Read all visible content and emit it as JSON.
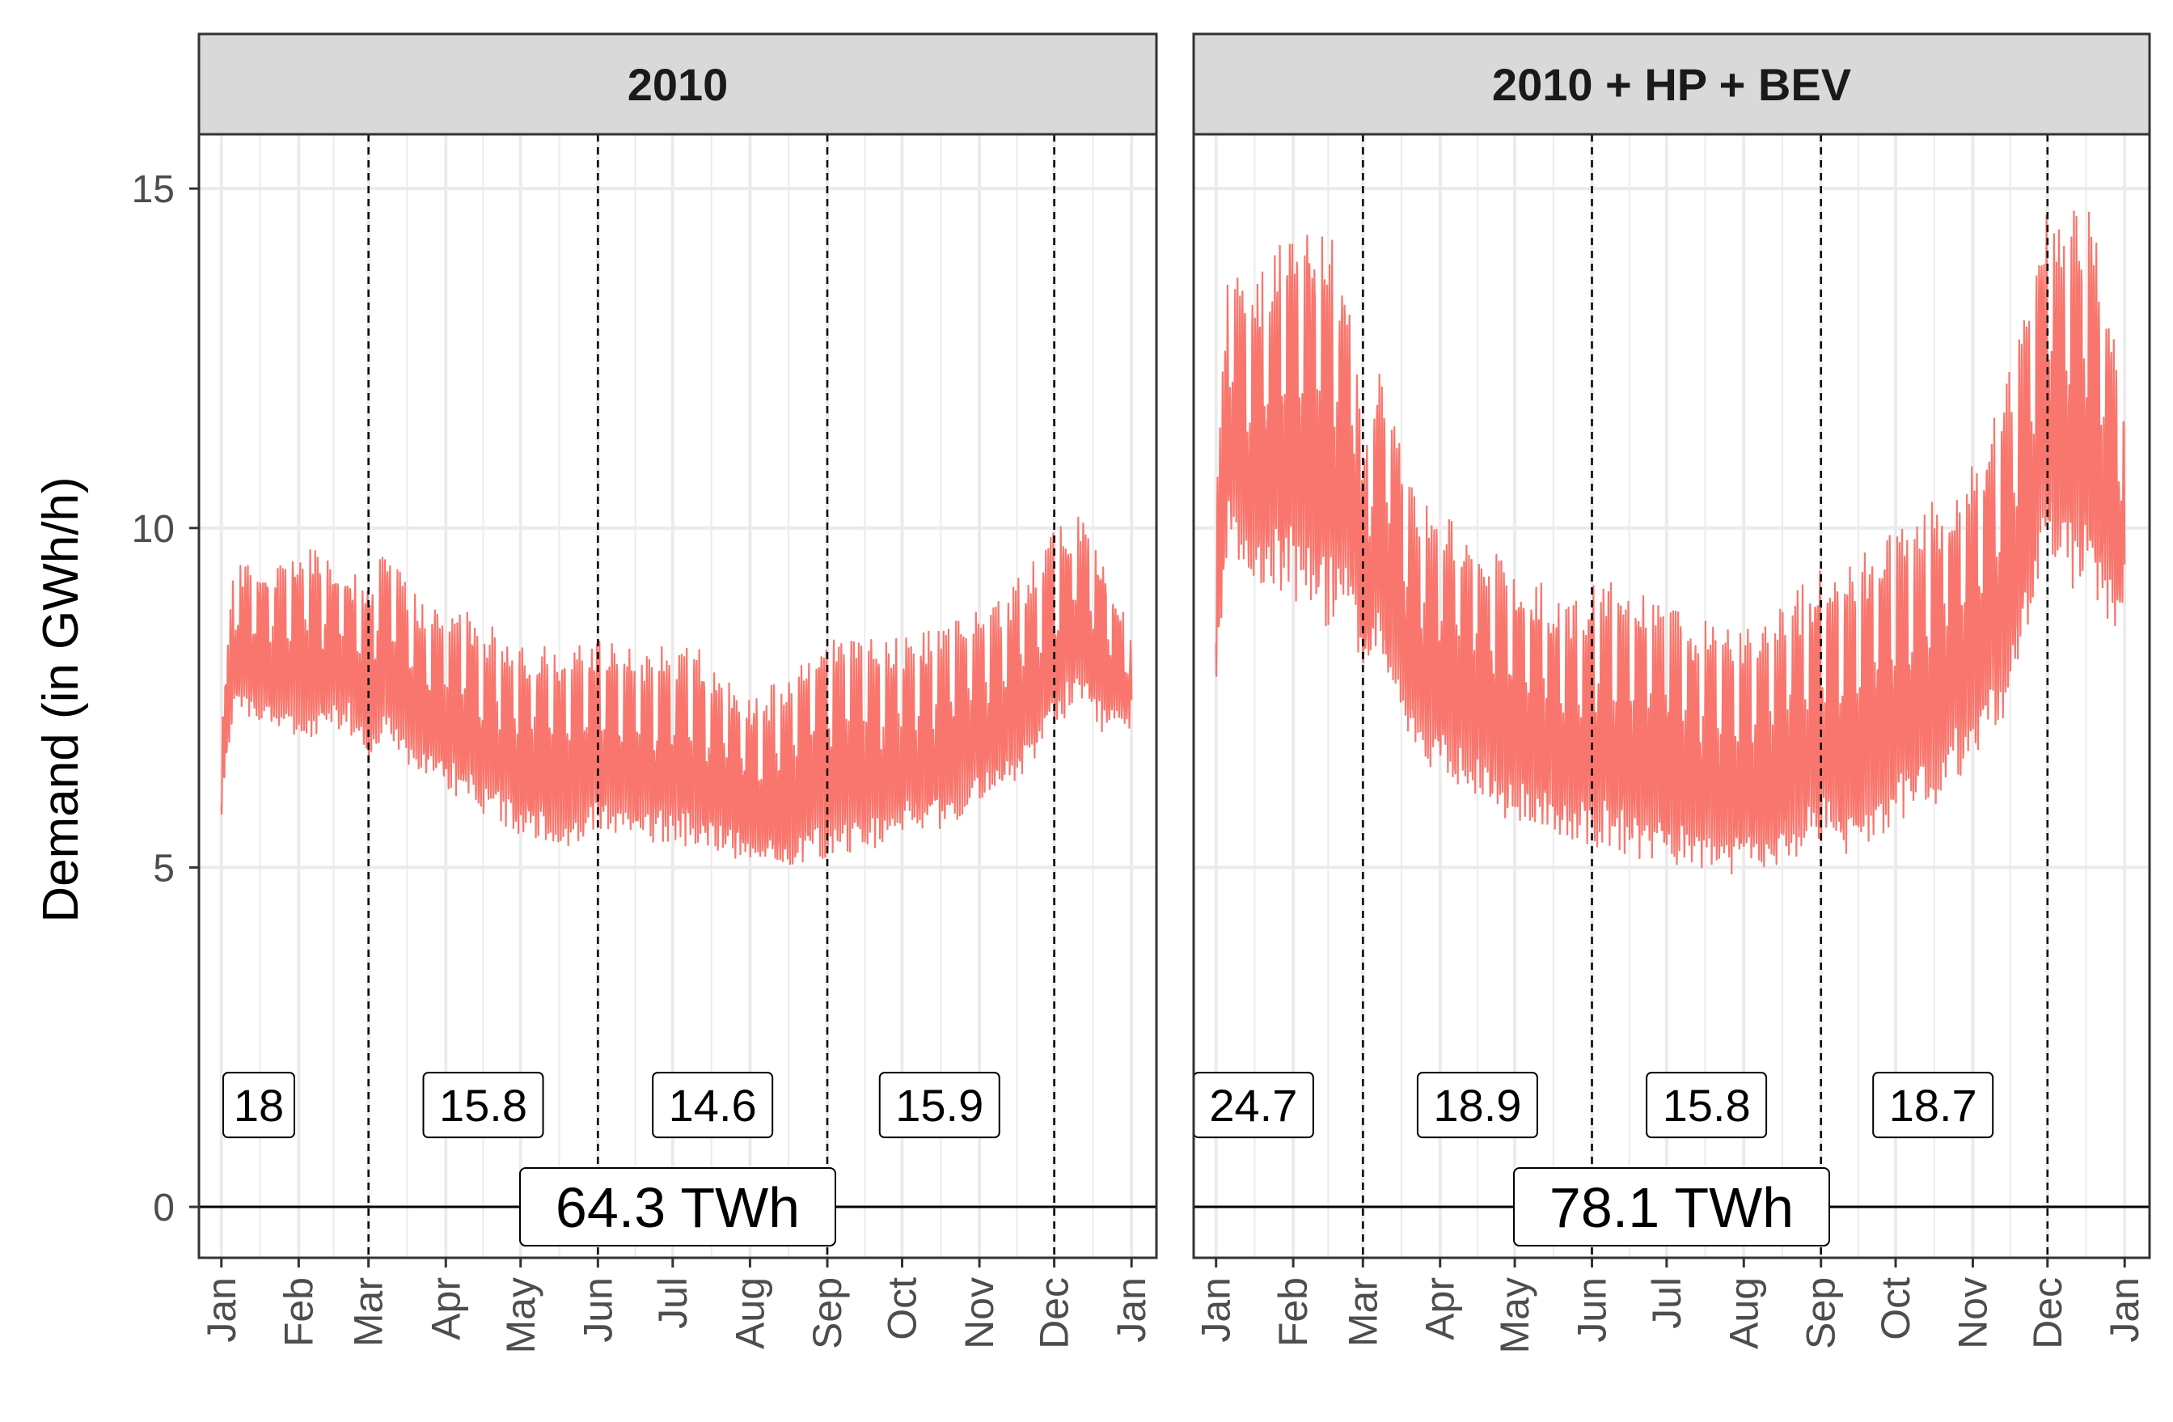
{
  "chart_data": {
    "type": "line",
    "ylabel": "Demand (in GWh/h)",
    "yticks": [
      0,
      5,
      10,
      15
    ],
    "ylim": [
      -0.75,
      15.8
    ],
    "xlim_days": [
      -9,
      375
    ],
    "month_ticks": [
      "Jan",
      "Feb",
      "Mar",
      "Apr",
      "May",
      "Jun",
      "Jul",
      "Aug",
      "Sep",
      "Oct",
      "Nov",
      "Dec",
      "Jan"
    ],
    "month_tick_days": [
      0,
      31,
      59,
      90,
      120,
      151,
      181,
      212,
      243,
      273,
      304,
      334,
      365
    ],
    "season_boundary_days": [
      59,
      151,
      243,
      334
    ],
    "series_color": "#F8766D",
    "grid": true,
    "panels": [
      {
        "strip": "2010",
        "total_label": "64.3 TWh",
        "season_labels": [
          "18",
          "15.8",
          "14.6",
          "15.9"
        ],
        "season_label_days": [
          15,
          105,
          197,
          288
        ],
        "season_label_y": 1.5,
        "envelope": {
          "days": [
            0,
            5,
            20,
            35,
            50,
            59,
            65,
            80,
            100,
            120,
            140,
            151,
            170,
            190,
            210,
            225,
            243,
            255,
            270,
            290,
            310,
            325,
            334,
            345,
            355,
            365
          ],
          "upper": [
            7.2,
            9.5,
            9.5,
            9.8,
            9.5,
            9.2,
            9.7,
            9.0,
            8.8,
            8.3,
            8.3,
            8.4,
            8.3,
            8.3,
            7.5,
            7.8,
            8.6,
            8.5,
            8.4,
            8.6,
            9.0,
            9.5,
            10.0,
            10.3,
            9.5,
            8.5
          ],
          "lower": [
            5.7,
            7.2,
            7.0,
            6.8,
            7.0,
            6.4,
            6.9,
            6.2,
            5.8,
            5.4,
            5.2,
            5.5,
            5.3,
            5.2,
            5.0,
            4.8,
            5.0,
            5.1,
            5.3,
            5.5,
            5.9,
            6.4,
            7.0,
            7.3,
            6.8,
            7.0
          ]
        }
      },
      {
        "strip": "2010 + HP + BEV",
        "total_label": "78.1 TWh",
        "season_labels": [
          "24.7",
          "18.9",
          "15.8",
          "18.7"
        ],
        "season_label_days": [
          15,
          105,
          197,
          288
        ],
        "season_label_y": 1.5,
        "envelope": {
          "days": [
            0,
            5,
            15,
            30,
            45,
            55,
            59,
            65,
            80,
            100,
            120,
            140,
            151,
            170,
            190,
            210,
            225,
            243,
            255,
            270,
            290,
            305,
            320,
            334,
            340,
            350,
            360,
            365
          ],
          "upper": [
            10.5,
            14.0,
            13.6,
            14.8,
            14.5,
            13.5,
            11.0,
            12.5,
            10.5,
            10.0,
            9.5,
            9.0,
            9.2,
            9.3,
            8.8,
            8.5,
            8.8,
            9.5,
            9.6,
            10.0,
            10.5,
            11.0,
            12.5,
            14.8,
            14.5,
            15.0,
            13.0,
            12.0
          ],
          "lower": [
            7.6,
            9.5,
            9.0,
            8.8,
            8.3,
            8.5,
            7.5,
            8.0,
            6.5,
            6.0,
            5.5,
            5.3,
            5.2,
            5.0,
            4.9,
            4.7,
            4.8,
            5.2,
            5.0,
            5.4,
            5.8,
            6.5,
            7.2,
            9.5,
            9.0,
            8.8,
            8.3,
            8.8
          ]
        }
      }
    ]
  }
}
